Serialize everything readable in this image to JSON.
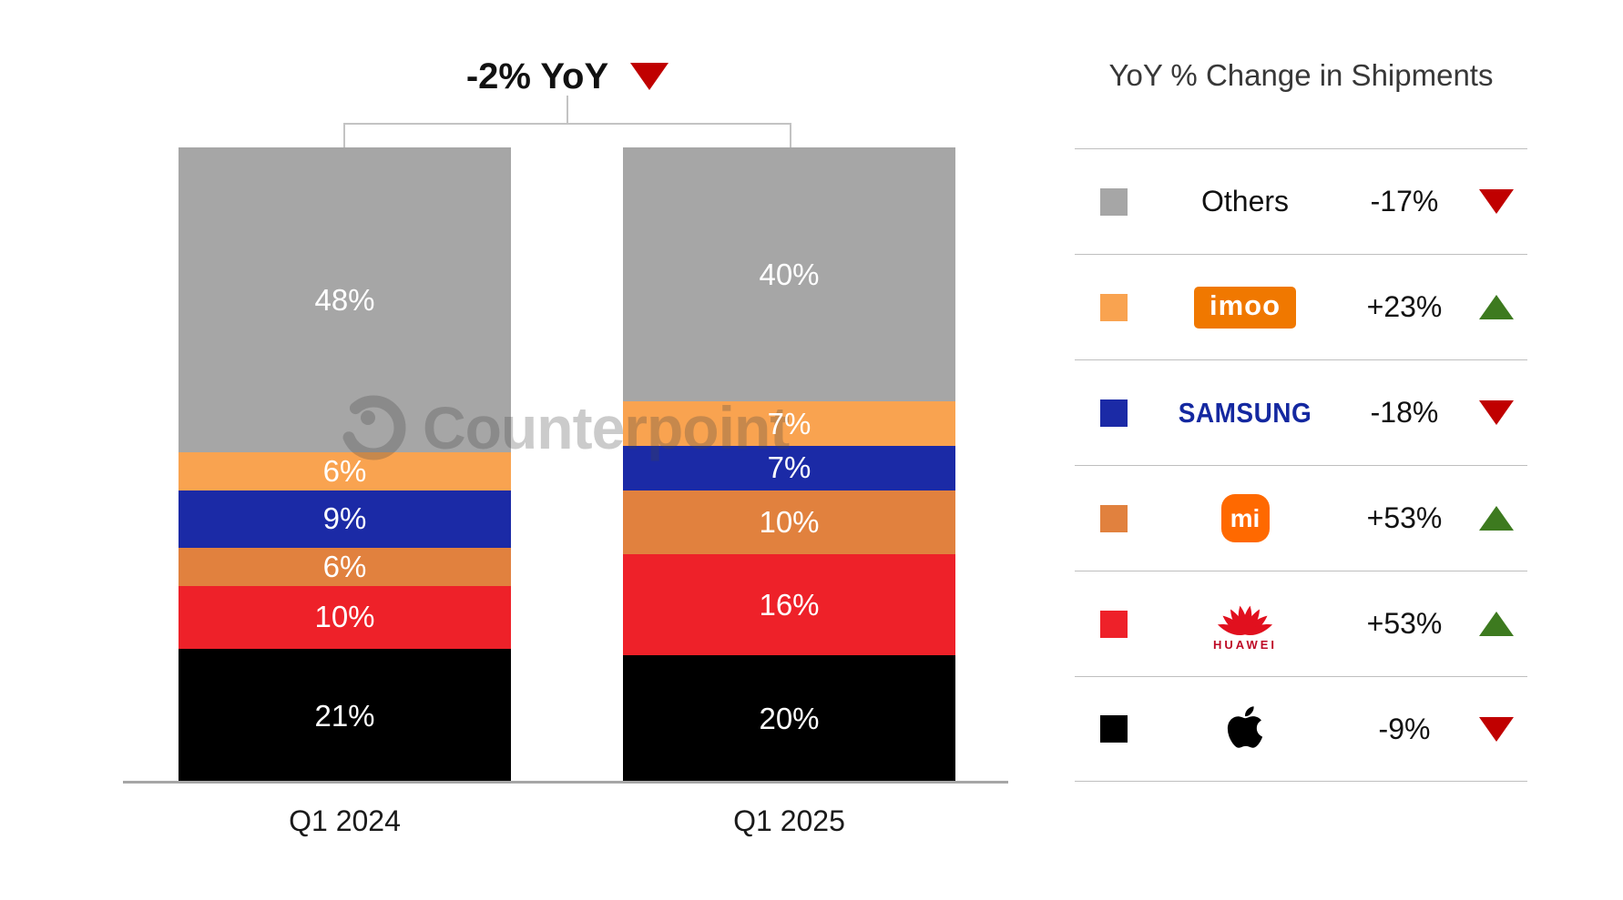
{
  "title": {
    "text": "-2% YoY",
    "direction": "down",
    "triangle_color": "#c00000"
  },
  "watermark": {
    "text": "Counterpoint"
  },
  "axis": {
    "labels": [
      "Q1 2024",
      "Q1 2025"
    ]
  },
  "legend": {
    "title": "YoY % Change in Shipments",
    "rows": [
      {
        "brand": "Others",
        "logo_type": "text",
        "change": "-17%",
        "direction": "down",
        "swatch_color": "#a6a6a6"
      },
      {
        "brand": "imoo",
        "logo_type": "imoo",
        "change": "+23%",
        "direction": "up",
        "swatch_color": "#f9a350"
      },
      {
        "brand": "Samsung",
        "logo_type": "samsung",
        "change": "-18%",
        "direction": "down",
        "swatch_color": "#1b2aa6"
      },
      {
        "brand": "Xiaomi",
        "logo_type": "mi",
        "change": "+53%",
        "direction": "up",
        "swatch_color": "#e1813e"
      },
      {
        "brand": "Huawei",
        "logo_type": "huawei",
        "change": "+53%",
        "direction": "up",
        "swatch_color": "#ee2129"
      },
      {
        "brand": "Apple",
        "logo_type": "apple",
        "change": "-9%",
        "direction": "down",
        "swatch_color": "#000000"
      }
    ],
    "up_color": "#3d7a1f",
    "down_color": "#c00000"
  },
  "chart_data": {
    "type": "bar",
    "stacked": true,
    "unit": "% share of shipments",
    "title": "-2% YoY",
    "categories": [
      "Q1 2024",
      "Q1 2025"
    ],
    "stack_order_top_to_bottom": [
      "Others",
      "imoo",
      "Samsung",
      "Xiaomi",
      "Huawei",
      "Apple"
    ],
    "series": [
      {
        "name": "Others",
        "color": "#a6a6a6",
        "values": [
          48,
          40
        ],
        "yoy_change": "-17%"
      },
      {
        "name": "imoo",
        "color": "#f9a350",
        "values": [
          6,
          7
        ],
        "yoy_change": "+23%"
      },
      {
        "name": "Samsung",
        "color": "#1b2aa6",
        "values": [
          9,
          7
        ],
        "yoy_change": "-18%"
      },
      {
        "name": "Xiaomi",
        "color": "#e1813e",
        "values": [
          6,
          10
        ],
        "yoy_change": "+53%"
      },
      {
        "name": "Huawei",
        "color": "#ee2129",
        "values": [
          10,
          16
        ],
        "yoy_change": "+53%"
      },
      {
        "name": "Apple",
        "color": "#000000",
        "values": [
          21,
          20
        ],
        "yoy_change": "-9%"
      }
    ],
    "ylim": [
      0,
      100
    ],
    "grid": false,
    "legend_position": "right",
    "legend_title": "YoY % Change in Shipments"
  }
}
